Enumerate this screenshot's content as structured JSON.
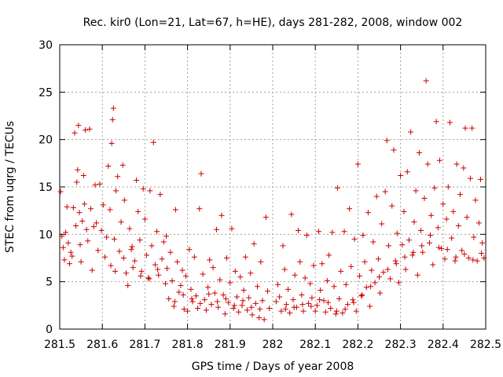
{
  "chart_data": {
    "type": "scatter",
    "title": "Rec. kir0 (Lon=21, Lat=67, h=HE), days 281-282, 2008, window 002",
    "xlabel": "GPS time / Days of year 2008",
    "ylabel": "STEC from uqrg / TECUs",
    "xlim": [
      281.5,
      282.5
    ],
    "ylim": [
      0,
      30
    ],
    "xticks": [
      281.5,
      281.6,
      281.7,
      281.8,
      281.9,
      282,
      282.1,
      282.2,
      282.3,
      282.4,
      282.5
    ],
    "xtick_labels": [
      "281.5",
      "281.6",
      "281.7",
      "281.8",
      "281.9",
      "282",
      "282.1",
      "282.2",
      "282.3",
      "282.4",
      "282.5"
    ],
    "yticks": [
      0,
      5,
      10,
      15,
      20,
      25,
      30
    ],
    "ytick_labels": [
      "0",
      "5",
      "10",
      "15",
      "20",
      "25",
      "30"
    ],
    "grid": true,
    "marker": "plus",
    "color": "#cc0000",
    "series": [
      {
        "name": "STEC",
        "points": [
          [
            281.502,
            14.5
          ],
          [
            281.505,
            9.8
          ],
          [
            281.508,
            8.6
          ],
          [
            281.511,
            7.3
          ],
          [
            281.514,
            10.2
          ],
          [
            281.517,
            12.9
          ],
          [
            281.52,
            9.1
          ],
          [
            281.523,
            6.9
          ],
          [
            281.526,
            8.1
          ],
          [
            281.529,
            7.7
          ],
          [
            281.532,
            12.8
          ],
          [
            281.535,
            20.7
          ],
          [
            281.538,
            10.9
          ],
          [
            281.54,
            15.5
          ],
          [
            281.542,
            16.8
          ],
          [
            281.544,
            21.5
          ],
          [
            281.546,
            12.3
          ],
          [
            281.548,
            8.9
          ],
          [
            281.55,
            7.1
          ],
          [
            281.553,
            11.4
          ],
          [
            281.556,
            16.2
          ],
          [
            281.558,
            13.2
          ],
          [
            281.56,
            21.0
          ],
          [
            281.563,
            10.5
          ],
          [
            281.566,
            9.3
          ],
          [
            281.57,
            21.1
          ],
          [
            281.573,
            12.7
          ],
          [
            281.576,
            6.2
          ],
          [
            281.58,
            10.8
          ],
          [
            281.583,
            15.2
          ],
          [
            281.586,
            11.2
          ],
          [
            281.59,
            8.3
          ],
          [
            281.594,
            15.3
          ],
          [
            281.598,
            10.4
          ],
          [
            281.602,
            13.1
          ],
          [
            281.606,
            7.6
          ],
          [
            281.61,
            9.7
          ],
          [
            281.614,
            17.2
          ],
          [
            281.618,
            12.6
          ],
          [
            281.62,
            6.7
          ],
          [
            281.622,
            19.6
          ],
          [
            281.624,
            22.1
          ],
          [
            281.626,
            23.3
          ],
          [
            281.628,
            9.5
          ],
          [
            281.632,
            14.6
          ],
          [
            281.636,
            16.1
          ],
          [
            281.64,
            8.2
          ],
          [
            281.644,
            11.3
          ],
          [
            281.648,
            17.3
          ],
          [
            281.652,
            13.6
          ],
          [
            281.656,
            5.9
          ],
          [
            281.66,
            4.6
          ],
          [
            281.664,
            10.6
          ],
          [
            281.668,
            8.4
          ],
          [
            281.672,
            6.5
          ],
          [
            281.676,
            7.2
          ],
          [
            281.68,
            15.7
          ],
          [
            281.684,
            12.4
          ],
          [
            281.688,
            9.4
          ],
          [
            281.692,
            6.1
          ],
          [
            281.696,
            14.8
          ],
          [
            281.7,
            11.6
          ],
          [
            281.704,
            7.8
          ],
          [
            281.708,
            5.4
          ],
          [
            281.712,
            14.6
          ],
          [
            281.716,
            8.8
          ],
          [
            281.72,
            19.7
          ],
          [
            281.724,
            6.8
          ],
          [
            281.728,
            10.3
          ],
          [
            281.732,
            5.7
          ],
          [
            281.736,
            14.2
          ],
          [
            281.74,
            7.4
          ],
          [
            281.744,
            9.2
          ],
          [
            281.748,
            4.8
          ],
          [
            281.752,
            6.4
          ],
          [
            281.756,
            3.2
          ],
          [
            281.76,
            8.1
          ],
          [
            281.764,
            5.1
          ],
          [
            281.768,
            2.4
          ],
          [
            281.772,
            12.6
          ],
          [
            281.776,
            7.1
          ],
          [
            281.78,
            3.9
          ],
          [
            281.784,
            4.6
          ],
          [
            281.788,
            6.2
          ],
          [
            281.792,
            2.1
          ],
          [
            281.796,
            5.6
          ],
          [
            281.8,
            1.9
          ],
          [
            281.804,
            8.4
          ],
          [
            281.808,
            4.2
          ],
          [
            281.812,
            2.9
          ],
          [
            281.816,
            7.6
          ],
          [
            281.82,
            3.5
          ],
          [
            281.824,
            2.2
          ],
          [
            281.828,
            12.7
          ],
          [
            281.832,
            16.4
          ],
          [
            281.836,
            5.8
          ],
          [
            281.84,
            3.1
          ],
          [
            281.844,
            2.0
          ],
          [
            281.848,
            4.4
          ],
          [
            281.852,
            7.3
          ],
          [
            281.856,
            2.6
          ],
          [
            281.86,
            6.5
          ],
          [
            281.864,
            3.8
          ],
          [
            281.868,
            10.5
          ],
          [
            281.872,
            2.3
          ],
          [
            281.876,
            5.2
          ],
          [
            281.88,
            12.0
          ],
          [
            281.884,
            3.6
          ],
          [
            281.888,
            1.6
          ],
          [
            281.892,
            7.5
          ],
          [
            281.896,
            2.8
          ],
          [
            281.9,
            4.9
          ],
          [
            281.904,
            10.6
          ],
          [
            281.908,
            2.2
          ],
          [
            281.912,
            6.1
          ],
          [
            281.916,
            3.4
          ],
          [
            281.92,
            1.8
          ],
          [
            281.924,
            5.5
          ],
          [
            281.928,
            2.5
          ],
          [
            281.932,
            4.1
          ],
          [
            281.936,
            7.6
          ],
          [
            281.94,
            2.0
          ],
          [
            281.944,
            3.3
          ],
          [
            281.948,
            5.9
          ],
          [
            281.952,
            1.5
          ],
          [
            281.956,
            9.0
          ],
          [
            281.96,
            2.7
          ],
          [
            281.964,
            4.5
          ],
          [
            281.968,
            1.2
          ],
          [
            281.972,
            7.1
          ],
          [
            281.976,
            3.0
          ],
          [
            281.98,
            1.0
          ],
          [
            281.984,
            11.8
          ],
          [
            281.988,
            4.0
          ],
          [
            281.992,
            2.2
          ],
          [
            282.008,
            2.9
          ],
          [
            282.012,
            4.7
          ],
          [
            282.016,
            3.4
          ],
          [
            282.02,
            1.9
          ],
          [
            282.024,
            8.8
          ],
          [
            282.028,
            6.3
          ],
          [
            282.032,
            2.6
          ],
          [
            282.036,
            4.2
          ],
          [
            282.04,
            1.7
          ],
          [
            282.044,
            12.1
          ],
          [
            282.048,
            3.1
          ],
          [
            282.052,
            5.7
          ],
          [
            282.056,
            2.3
          ],
          [
            282.06,
            10.4
          ],
          [
            282.064,
            7.1
          ],
          [
            282.068,
            3.6
          ],
          [
            282.072,
            1.9
          ],
          [
            282.076,
            5.4
          ],
          [
            282.08,
            9.9
          ],
          [
            282.084,
            2.7
          ],
          [
            282.088,
            4.8
          ],
          [
            282.092,
            3.3
          ],
          [
            282.096,
            6.7
          ],
          [
            282.1,
            1.9
          ],
          [
            282.104,
            2.5
          ],
          [
            282.108,
            10.3
          ],
          [
            282.112,
            4.1
          ],
          [
            282.116,
            6.9
          ],
          [
            282.12,
            3.0
          ],
          [
            282.124,
            1.8
          ],
          [
            282.128,
            5.1
          ],
          [
            282.132,
            7.8
          ],
          [
            282.136,
            2.2
          ],
          [
            282.14,
            10.2
          ],
          [
            282.144,
            4.5
          ],
          [
            282.148,
            1.6
          ],
          [
            282.152,
            14.9
          ],
          [
            282.156,
            3.2
          ],
          [
            282.16,
            6.1
          ],
          [
            282.164,
            1.7
          ],
          [
            282.168,
            10.3
          ],
          [
            282.172,
            4.7
          ],
          [
            282.176,
            2.6
          ],
          [
            282.18,
            12.7
          ],
          [
            282.184,
            6.6
          ],
          [
            282.188,
            3.1
          ],
          [
            282.192,
            9.5
          ],
          [
            282.196,
            1.9
          ],
          [
            282.2,
            17.4
          ],
          [
            282.204,
            5.6
          ],
          [
            282.208,
            3.5
          ],
          [
            282.212,
            9.9
          ],
          [
            282.216,
            7.1
          ],
          [
            282.22,
            4.4
          ],
          [
            282.224,
            12.3
          ],
          [
            282.228,
            2.4
          ],
          [
            282.232,
            6.2
          ],
          [
            282.236,
            9.2
          ],
          [
            282.24,
            4.9
          ],
          [
            282.244,
            14.0
          ],
          [
            282.248,
            7.4
          ],
          [
            282.252,
            3.8
          ],
          [
            282.256,
            11.1
          ],
          [
            282.26,
            6.0
          ],
          [
            282.264,
            14.5
          ],
          [
            282.268,
            19.9
          ],
          [
            282.272,
            8.8
          ],
          [
            282.276,
            5.3
          ],
          [
            282.28,
            13.0
          ],
          [
            282.284,
            18.9
          ],
          [
            282.288,
            7.2
          ],
          [
            282.292,
            10.1
          ],
          [
            282.296,
            4.9
          ],
          [
            282.3,
            16.2
          ],
          [
            282.304,
            8.9
          ],
          [
            282.308,
            12.4
          ],
          [
            282.312,
            6.3
          ],
          [
            282.316,
            16.6
          ],
          [
            282.32,
            9.4
          ],
          [
            282.324,
            20.8
          ],
          [
            282.328,
            7.8
          ],
          [
            282.332,
            11.3
          ],
          [
            282.336,
            14.6
          ],
          [
            282.34,
            5.7
          ],
          [
            282.344,
            18.6
          ],
          [
            282.348,
            10.4
          ],
          [
            282.352,
            8.1
          ],
          [
            282.356,
            13.8
          ],
          [
            282.36,
            26.2
          ],
          [
            282.364,
            17.4
          ],
          [
            282.368,
            9.1
          ],
          [
            282.372,
            12.0
          ],
          [
            282.376,
            6.8
          ],
          [
            282.38,
            14.9
          ],
          [
            282.384,
            21.9
          ],
          [
            282.388,
            10.7
          ],
          [
            282.392,
            17.8
          ],
          [
            282.396,
            8.5
          ],
          [
            282.4,
            13.2
          ],
          [
            282.404,
            7.4
          ],
          [
            282.408,
            11.6
          ],
          [
            282.412,
            15.0
          ],
          [
            282.416,
            21.8
          ],
          [
            282.42,
            9.6
          ],
          [
            282.424,
            12.4
          ],
          [
            282.428,
            7.2
          ],
          [
            282.432,
            17.4
          ],
          [
            282.436,
            10.9
          ],
          [
            282.44,
            14.2
          ],
          [
            282.444,
            8.3
          ],
          [
            282.448,
            17.0
          ],
          [
            282.452,
            21.2
          ],
          [
            282.456,
            11.8
          ],
          [
            282.46,
            7.5
          ],
          [
            282.464,
            15.9
          ],
          [
            282.468,
            21.2
          ],
          [
            282.472,
            9.7
          ],
          [
            282.476,
            13.6
          ],
          [
            282.48,
            7.2
          ],
          [
            282.484,
            11.2
          ],
          [
            282.488,
            15.8
          ],
          [
            282.492,
            9.1
          ],
          [
            282.496,
            7.5
          ],
          [
            281.63,
            6.1
          ],
          [
            281.65,
            7.5
          ],
          [
            281.67,
            8.7
          ],
          [
            281.69,
            5.6
          ],
          [
            281.71,
            5.3
          ],
          [
            281.73,
            6.3
          ],
          [
            281.75,
            9.8
          ],
          [
            281.77,
            2.9
          ],
          [
            281.79,
            3.6
          ],
          [
            281.81,
            3.2
          ],
          [
            281.83,
            2.7
          ],
          [
            281.85,
            3.7
          ],
          [
            281.87,
            2.9
          ],
          [
            281.89,
            3.2
          ],
          [
            281.91,
            2.5
          ],
          [
            281.93,
            3.0
          ],
          [
            281.95,
            2.3
          ],
          [
            281.97,
            2.1
          ],
          [
            282.03,
            2.1
          ],
          [
            282.05,
            2.3
          ],
          [
            282.07,
            2.6
          ],
          [
            282.09,
            2.4
          ],
          [
            282.11,
            3.1
          ],
          [
            282.13,
            2.8
          ],
          [
            282.15,
            1.9
          ],
          [
            282.17,
            2.1
          ],
          [
            282.19,
            2.8
          ],
          [
            282.21,
            3.6
          ],
          [
            282.23,
            4.5
          ],
          [
            282.25,
            5.5
          ],
          [
            282.27,
            6.3
          ],
          [
            282.29,
            6.9
          ],
          [
            282.31,
            7.6
          ],
          [
            282.33,
            8.1
          ],
          [
            282.35,
            8.8
          ],
          [
            282.37,
            9.9
          ],
          [
            282.39,
            8.6
          ],
          [
            282.41,
            8.4
          ],
          [
            282.43,
            7.6
          ],
          [
            282.45,
            7.9
          ],
          [
            282.47,
            7.3
          ],
          [
            282.49,
            8.0
          ]
        ]
      }
    ]
  }
}
